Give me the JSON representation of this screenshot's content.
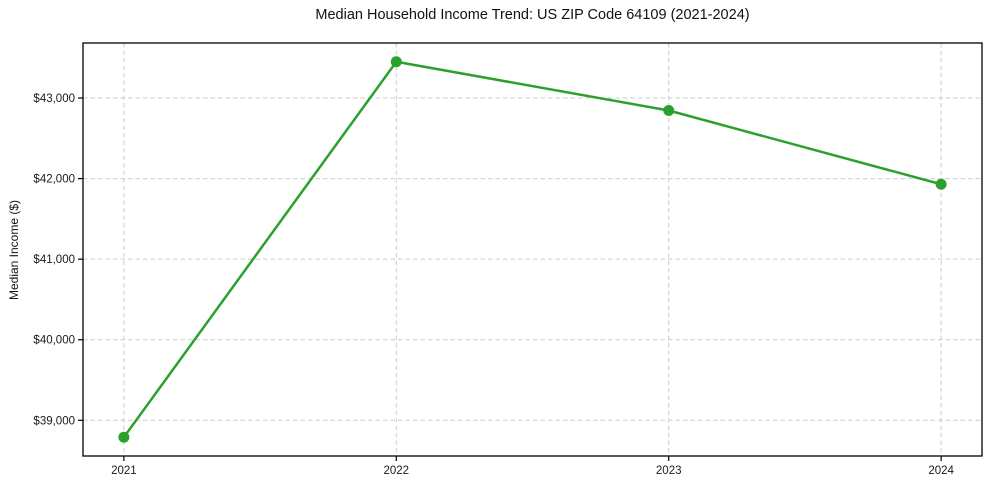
{
  "figure": {
    "background": "#ffffff"
  },
  "chart_data": {
    "type": "line",
    "title": "Median Household Income Trend: US ZIP Code 64109 (2021-2024)",
    "xlabel": "",
    "ylabel": "Median Income ($)",
    "x": [
      2021,
      2022,
      2023,
      2024
    ],
    "series": [
      {
        "name": "Median Household Income",
        "values": [
          38790,
          43450,
          42845,
          41930
        ]
      }
    ],
    "x_ticks": [
      2021,
      2022,
      2023,
      2024
    ],
    "x_tick_labels": [
      "2021",
      "2022",
      "2023",
      "2024"
    ],
    "y_ticks": [
      39000,
      40000,
      41000,
      42000,
      43000
    ],
    "y_tick_labels": [
      "$39,000",
      "$40,000",
      "$41,000",
      "$42,000",
      "$43,000"
    ],
    "xlim": [
      2020.85,
      2024.15
    ],
    "ylim": [
      38557,
      43683
    ],
    "grid": true,
    "legend": "none",
    "line_color": "#2ca02c",
    "marker": "circle",
    "grid_color": "#cccccc",
    "spine_color": "#000000",
    "tick_label_color": "#1a1a1a"
  }
}
